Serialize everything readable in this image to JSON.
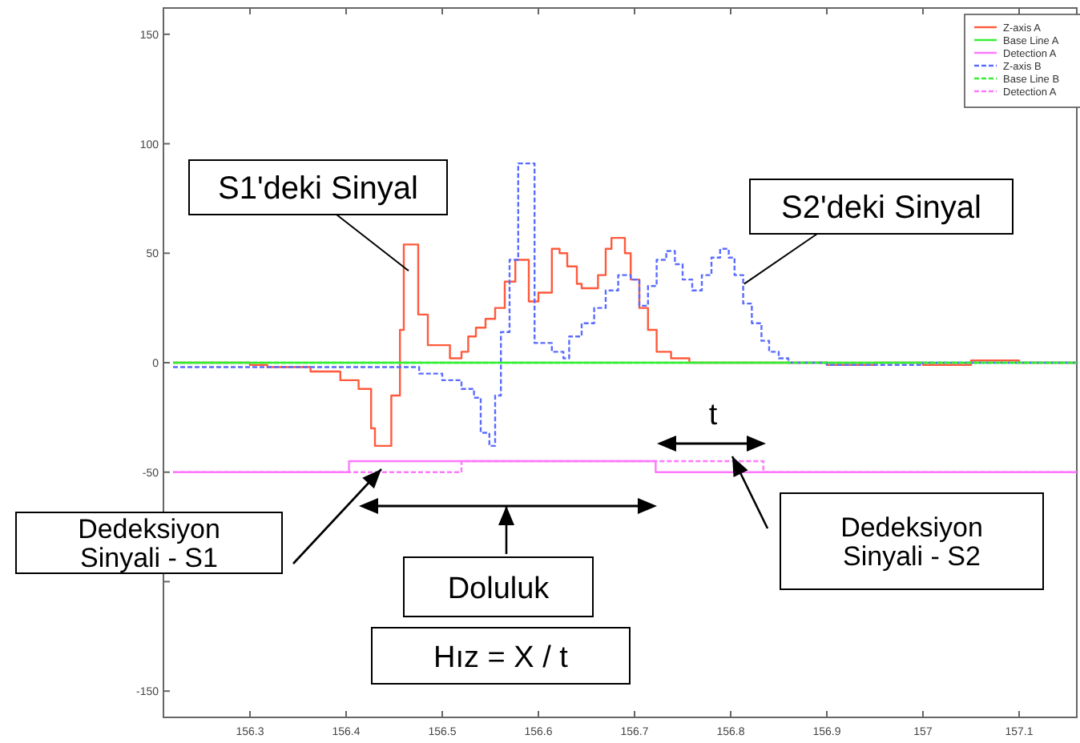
{
  "chart_data": {
    "type": "step",
    "xlim": [
      156.21,
      157.16
    ],
    "ylim": [
      -162,
      162
    ],
    "xticks": [
      156.3,
      156.4,
      156.5,
      156.6,
      156.7,
      156.8,
      156.9,
      157,
      157.1
    ],
    "yticks": [
      150,
      100,
      50,
      0,
      -50,
      {
        "value": -100,
        "label": null
      },
      -150
    ],
    "legend": "top right",
    "grid": false,
    "series": [
      {
        "name": "Z-axis A",
        "color": "#ff5a3c",
        "line_style": "solid",
        "x": [
          156.22,
          156.3,
          156.318,
          156.363,
          156.394,
          156.413,
          156.426,
          156.43,
          156.447,
          156.456,
          156.46,
          156.475,
          156.485,
          156.508,
          156.52,
          156.527,
          156.535,
          156.545,
          156.555,
          156.565,
          156.576,
          156.59,
          156.6,
          156.614,
          156.622,
          156.63,
          156.64,
          156.645,
          156.662,
          156.67,
          156.676,
          156.69,
          156.696,
          156.705,
          156.714,
          156.723,
          156.738,
          156.757,
          156.9,
          156.95,
          157.0,
          157.05,
          157.1,
          157.16
        ],
        "values": [
          0,
          -1,
          -2,
          -4,
          -8,
          -12,
          -30,
          -38,
          -15,
          15,
          54,
          22,
          8,
          2,
          5,
          12,
          16,
          20,
          25,
          37,
          47,
          28,
          32,
          52,
          50,
          44,
          36,
          34,
          40,
          52,
          57,
          50,
          38,
          25,
          15,
          5,
          2,
          0,
          -1,
          0,
          -1,
          1,
          0,
          0
        ]
      },
      {
        "name": "Base Line A",
        "color": "#33ee33",
        "line_style": "solid",
        "x": [
          156.22,
          157.16
        ],
        "values": [
          0,
          0
        ]
      },
      {
        "name": "Detection A",
        "color": "#ff77ff",
        "line_style": "solid",
        "x": [
          156.22,
          156.403,
          156.722,
          157.16
        ],
        "values": [
          -50,
          -45,
          -50,
          -50
        ]
      },
      {
        "name": "Z-axis B",
        "color": "#5a6cff",
        "line_style": "dotted",
        "x": [
          156.22,
          156.426,
          156.476,
          156.5,
          156.52,
          156.533,
          156.54,
          156.549,
          156.555,
          156.561,
          156.57,
          156.579,
          156.596,
          156.614,
          156.626,
          156.632,
          156.645,
          156.658,
          156.67,
          156.683,
          156.696,
          156.705,
          156.714,
          156.723,
          156.733,
          156.742,
          156.75,
          156.76,
          156.77,
          156.78,
          156.789,
          156.798,
          156.804,
          156.813,
          156.822,
          156.832,
          156.84,
          156.85,
          156.86,
          156.9,
          157.0,
          157.16
        ],
        "values": [
          -2,
          -2,
          -5,
          -8,
          -12,
          -16,
          -32,
          -38,
          -15,
          14,
          47,
          91,
          9,
          5,
          2,
          12,
          18,
          25,
          33,
          40,
          38,
          26,
          35,
          47,
          51,
          45,
          38,
          33,
          40,
          48,
          52,
          48,
          40,
          27,
          18,
          10,
          5,
          2,
          0,
          -1,
          0,
          0
        ]
      },
      {
        "name": "Base Line B",
        "color": "#33ee33",
        "line_style": "dotted",
        "x": [
          156.22,
          157.16
        ],
        "values": [
          0,
          0
        ]
      },
      {
        "name": "Detection A",
        "color": "#ff77ff",
        "line_style": "dotted",
        "x": [
          156.22,
          156.52,
          156.834,
          157.16
        ],
        "values": [
          -50,
          -45,
          -50,
          -50
        ]
      }
    ],
    "annotations": [
      {
        "text": "S1'deki Sinyal",
        "x": 156.465,
        "y": 42
      },
      {
        "text": "S2'deki Sinyal",
        "x": 156.814,
        "y": 36
      },
      "Dedeksiyon Sinyali - S1",
      "Doluluk",
      "Hız = X / t",
      "t",
      "Dedeksiyon Sinyali - S2"
    ]
  }
}
